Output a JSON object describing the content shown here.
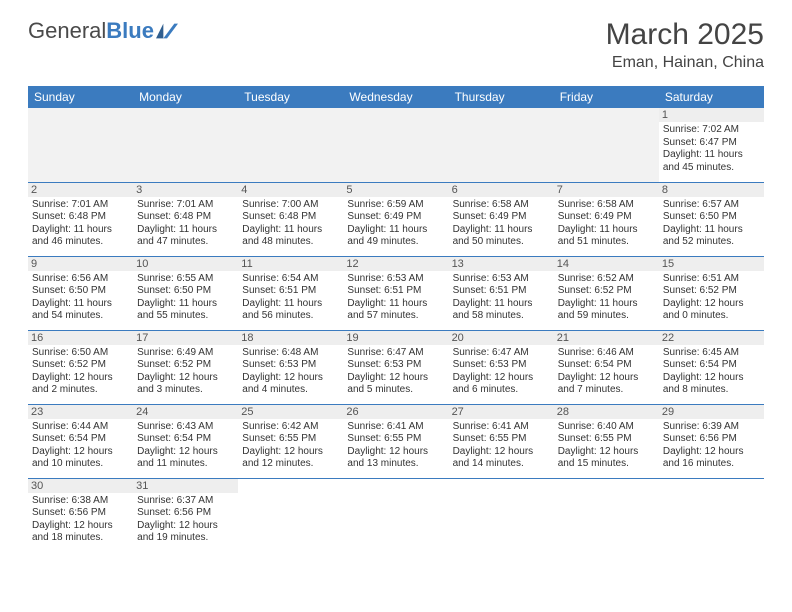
{
  "brand": {
    "part1": "General",
    "part2": "Blue"
  },
  "title": "March 2025",
  "location": "Eman, Hainan, China",
  "colors": {
    "header_bg": "#3b7bbf",
    "header_fg": "#ffffff",
    "daynum_bg": "#eeeeee",
    "empty_bg": "#f2f2f2",
    "row_divider": "#3b7bbf",
    "text": "#333333"
  },
  "weekdays": [
    "Sunday",
    "Monday",
    "Tuesday",
    "Wednesday",
    "Thursday",
    "Friday",
    "Saturday"
  ],
  "weeks": [
    [
      null,
      null,
      null,
      null,
      null,
      null,
      {
        "n": "1",
        "sr": "Sunrise: 7:02 AM",
        "ss": "Sunset: 6:47 PM",
        "dl": "Daylight: 11 hours and 45 minutes."
      }
    ],
    [
      {
        "n": "2",
        "sr": "Sunrise: 7:01 AM",
        "ss": "Sunset: 6:48 PM",
        "dl": "Daylight: 11 hours and 46 minutes."
      },
      {
        "n": "3",
        "sr": "Sunrise: 7:01 AM",
        "ss": "Sunset: 6:48 PM",
        "dl": "Daylight: 11 hours and 47 minutes."
      },
      {
        "n": "4",
        "sr": "Sunrise: 7:00 AM",
        "ss": "Sunset: 6:48 PM",
        "dl": "Daylight: 11 hours and 48 minutes."
      },
      {
        "n": "5",
        "sr": "Sunrise: 6:59 AM",
        "ss": "Sunset: 6:49 PM",
        "dl": "Daylight: 11 hours and 49 minutes."
      },
      {
        "n": "6",
        "sr": "Sunrise: 6:58 AM",
        "ss": "Sunset: 6:49 PM",
        "dl": "Daylight: 11 hours and 50 minutes."
      },
      {
        "n": "7",
        "sr": "Sunrise: 6:58 AM",
        "ss": "Sunset: 6:49 PM",
        "dl": "Daylight: 11 hours and 51 minutes."
      },
      {
        "n": "8",
        "sr": "Sunrise: 6:57 AM",
        "ss": "Sunset: 6:50 PM",
        "dl": "Daylight: 11 hours and 52 minutes."
      }
    ],
    [
      {
        "n": "9",
        "sr": "Sunrise: 6:56 AM",
        "ss": "Sunset: 6:50 PM",
        "dl": "Daylight: 11 hours and 54 minutes."
      },
      {
        "n": "10",
        "sr": "Sunrise: 6:55 AM",
        "ss": "Sunset: 6:50 PM",
        "dl": "Daylight: 11 hours and 55 minutes."
      },
      {
        "n": "11",
        "sr": "Sunrise: 6:54 AM",
        "ss": "Sunset: 6:51 PM",
        "dl": "Daylight: 11 hours and 56 minutes."
      },
      {
        "n": "12",
        "sr": "Sunrise: 6:53 AM",
        "ss": "Sunset: 6:51 PM",
        "dl": "Daylight: 11 hours and 57 minutes."
      },
      {
        "n": "13",
        "sr": "Sunrise: 6:53 AM",
        "ss": "Sunset: 6:51 PM",
        "dl": "Daylight: 11 hours and 58 minutes."
      },
      {
        "n": "14",
        "sr": "Sunrise: 6:52 AM",
        "ss": "Sunset: 6:52 PM",
        "dl": "Daylight: 11 hours and 59 minutes."
      },
      {
        "n": "15",
        "sr": "Sunrise: 6:51 AM",
        "ss": "Sunset: 6:52 PM",
        "dl": "Daylight: 12 hours and 0 minutes."
      }
    ],
    [
      {
        "n": "16",
        "sr": "Sunrise: 6:50 AM",
        "ss": "Sunset: 6:52 PM",
        "dl": "Daylight: 12 hours and 2 minutes."
      },
      {
        "n": "17",
        "sr": "Sunrise: 6:49 AM",
        "ss": "Sunset: 6:52 PM",
        "dl": "Daylight: 12 hours and 3 minutes."
      },
      {
        "n": "18",
        "sr": "Sunrise: 6:48 AM",
        "ss": "Sunset: 6:53 PM",
        "dl": "Daylight: 12 hours and 4 minutes."
      },
      {
        "n": "19",
        "sr": "Sunrise: 6:47 AM",
        "ss": "Sunset: 6:53 PM",
        "dl": "Daylight: 12 hours and 5 minutes."
      },
      {
        "n": "20",
        "sr": "Sunrise: 6:47 AM",
        "ss": "Sunset: 6:53 PM",
        "dl": "Daylight: 12 hours and 6 minutes."
      },
      {
        "n": "21",
        "sr": "Sunrise: 6:46 AM",
        "ss": "Sunset: 6:54 PM",
        "dl": "Daylight: 12 hours and 7 minutes."
      },
      {
        "n": "22",
        "sr": "Sunrise: 6:45 AM",
        "ss": "Sunset: 6:54 PM",
        "dl": "Daylight: 12 hours and 8 minutes."
      }
    ],
    [
      {
        "n": "23",
        "sr": "Sunrise: 6:44 AM",
        "ss": "Sunset: 6:54 PM",
        "dl": "Daylight: 12 hours and 10 minutes."
      },
      {
        "n": "24",
        "sr": "Sunrise: 6:43 AM",
        "ss": "Sunset: 6:54 PM",
        "dl": "Daylight: 12 hours and 11 minutes."
      },
      {
        "n": "25",
        "sr": "Sunrise: 6:42 AM",
        "ss": "Sunset: 6:55 PM",
        "dl": "Daylight: 12 hours and 12 minutes."
      },
      {
        "n": "26",
        "sr": "Sunrise: 6:41 AM",
        "ss": "Sunset: 6:55 PM",
        "dl": "Daylight: 12 hours and 13 minutes."
      },
      {
        "n": "27",
        "sr": "Sunrise: 6:41 AM",
        "ss": "Sunset: 6:55 PM",
        "dl": "Daylight: 12 hours and 14 minutes."
      },
      {
        "n": "28",
        "sr": "Sunrise: 6:40 AM",
        "ss": "Sunset: 6:55 PM",
        "dl": "Daylight: 12 hours and 15 minutes."
      },
      {
        "n": "29",
        "sr": "Sunrise: 6:39 AM",
        "ss": "Sunset: 6:56 PM",
        "dl": "Daylight: 12 hours and 16 minutes."
      }
    ],
    [
      {
        "n": "30",
        "sr": "Sunrise: 6:38 AM",
        "ss": "Sunset: 6:56 PM",
        "dl": "Daylight: 12 hours and 18 minutes."
      },
      {
        "n": "31",
        "sr": "Sunrise: 6:37 AM",
        "ss": "Sunset: 6:56 PM",
        "dl": "Daylight: 12 hours and 19 minutes."
      },
      null,
      null,
      null,
      null,
      null
    ]
  ]
}
